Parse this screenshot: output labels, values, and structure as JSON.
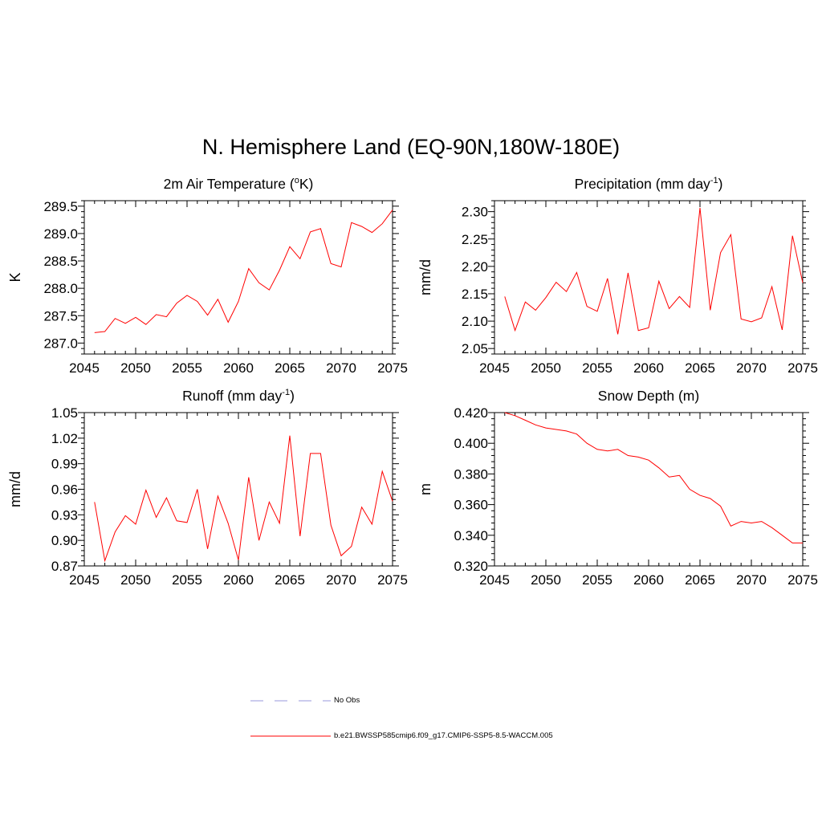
{
  "title": "N. Hemisphere Land (EQ-90N,180W-180E)",
  "line_color": "#ff0000",
  "legend": [
    {
      "label": "No Obs",
      "style": "dashed",
      "color": "#9999dd"
    },
    {
      "label": "b.e21.BWSSP585cmip6.f09_g17.CMIP6-SSP5-8.5-WACCM.005",
      "style": "solid",
      "color": "#ff0000"
    }
  ],
  "chart_data": [
    {
      "type": "line",
      "title_main": "2m Air Temperature (",
      "title_sup": "o",
      "title_tail": "K)",
      "ylabel": "K",
      "xlim": [
        2045,
        2075
      ],
      "ylim": [
        286.8,
        289.6
      ],
      "yticks": [
        287.0,
        287.5,
        288.0,
        288.5,
        289.0,
        289.5
      ],
      "ytick_labels": [
        "287.0",
        "287.5",
        "288.0",
        "288.5",
        "289.0",
        "289.5"
      ],
      "xticks": [
        2045,
        2050,
        2055,
        2060,
        2065,
        2070,
        2075
      ],
      "xtick_labels": [
        "2045",
        "2050",
        "2055",
        "2060",
        "2065",
        "2070",
        "2075"
      ],
      "x": [
        2046,
        2047,
        2048,
        2049,
        2050,
        2051,
        2052,
        2053,
        2054,
        2055,
        2056,
        2057,
        2058,
        2059,
        2060,
        2061,
        2062,
        2063,
        2064,
        2065,
        2066,
        2067,
        2068,
        2069,
        2070,
        2071,
        2072,
        2073,
        2074,
        2075
      ],
      "values": [
        287.19,
        287.21,
        287.45,
        287.36,
        287.47,
        287.34,
        287.52,
        287.48,
        287.73,
        287.87,
        287.76,
        287.51,
        287.8,
        287.38,
        287.76,
        288.36,
        288.1,
        287.97,
        288.33,
        288.76,
        288.54,
        289.03,
        289.09,
        288.45,
        288.39,
        289.2,
        289.13,
        289.02,
        289.18,
        289.43
      ]
    },
    {
      "type": "line",
      "title_main": "Precipitation (mm day",
      "title_sup": "-1",
      "title_tail": ")",
      "ylabel": "mm/d",
      "xlim": [
        2045,
        2075
      ],
      "ylim": [
        2.04,
        2.32
      ],
      "yticks": [
        2.05,
        2.1,
        2.15,
        2.2,
        2.25,
        2.3
      ],
      "ytick_labels": [
        "2.05",
        "2.10",
        "2.15",
        "2.20",
        "2.25",
        "2.30"
      ],
      "xticks": [
        2045,
        2050,
        2055,
        2060,
        2065,
        2070,
        2075
      ],
      "xtick_labels": [
        "2045",
        "2050",
        "2055",
        "2060",
        "2065",
        "2070",
        "2075"
      ],
      "x": [
        2046,
        2047,
        2048,
        2049,
        2050,
        2051,
        2052,
        2053,
        2054,
        2055,
        2056,
        2057,
        2058,
        2059,
        2060,
        2061,
        2062,
        2063,
        2064,
        2065,
        2066,
        2067,
        2068,
        2069,
        2070,
        2071,
        2072,
        2073,
        2074,
        2075
      ],
      "values": [
        2.145,
        2.083,
        2.135,
        2.12,
        2.143,
        2.171,
        2.154,
        2.189,
        2.127,
        2.118,
        2.178,
        2.076,
        2.188,
        2.083,
        2.088,
        2.173,
        2.123,
        2.145,
        2.125,
        2.307,
        2.12,
        2.225,
        2.258,
        2.104,
        2.099,
        2.106,
        2.163,
        2.084,
        2.256,
        2.17
      ]
    },
    {
      "type": "line",
      "title_main": "Runoff (mm day",
      "title_sup": "-1",
      "title_tail": ")",
      "ylabel": "mm/d",
      "xlim": [
        2045,
        2075
      ],
      "ylim": [
        0.87,
        1.05
      ],
      "yticks": [
        0.87,
        0.9,
        0.93,
        0.96,
        0.99,
        1.02,
        1.05
      ],
      "ytick_labels": [
        "0.87",
        "0.90",
        "0.93",
        "0.96",
        "0.99",
        "1.02",
        "1.05"
      ],
      "xticks": [
        2045,
        2050,
        2055,
        2060,
        2065,
        2070,
        2075
      ],
      "xtick_labels": [
        "2045",
        "2050",
        "2055",
        "2060",
        "2065",
        "2070",
        "2075"
      ],
      "x": [
        2046,
        2047,
        2048,
        2049,
        2050,
        2051,
        2052,
        2053,
        2054,
        2055,
        2056,
        2057,
        2058,
        2059,
        2060,
        2061,
        2062,
        2063,
        2064,
        2065,
        2066,
        2067,
        2068,
        2069,
        2070,
        2071,
        2072,
        2073,
        2074,
        2075
      ],
      "values": [
        0.945,
        0.876,
        0.91,
        0.929,
        0.919,
        0.959,
        0.927,
        0.95,
        0.923,
        0.921,
        0.96,
        0.89,
        0.952,
        0.92,
        0.877,
        0.974,
        0.9,
        0.945,
        0.92,
        1.023,
        0.905,
        1.002,
        1.002,
        0.918,
        0.882,
        0.893,
        0.939,
        0.919,
        0.981,
        0.946
      ]
    },
    {
      "type": "line",
      "title_main": "Snow Depth (m)",
      "title_sup": "",
      "title_tail": "",
      "ylabel": "m",
      "xlim": [
        2045,
        2075
      ],
      "ylim": [
        0.32,
        0.42
      ],
      "yticks": [
        0.32,
        0.34,
        0.36,
        0.38,
        0.4,
        0.42
      ],
      "ytick_labels": [
        "0.320",
        "0.340",
        "0.360",
        "0.380",
        "0.400",
        "0.420"
      ],
      "xticks": [
        2045,
        2050,
        2055,
        2060,
        2065,
        2070,
        2075
      ],
      "xtick_labels": [
        "2045",
        "2050",
        "2055",
        "2060",
        "2065",
        "2070",
        "2075"
      ],
      "x": [
        2046,
        2047,
        2048,
        2049,
        2050,
        2051,
        2052,
        2053,
        2054,
        2055,
        2056,
        2057,
        2058,
        2059,
        2060,
        2061,
        2062,
        2063,
        2064,
        2065,
        2066,
        2067,
        2068,
        2069,
        2070,
        2071,
        2072,
        2073,
        2074,
        2075
      ],
      "values": [
        0.42,
        0.418,
        0.415,
        0.412,
        0.41,
        0.409,
        0.408,
        0.406,
        0.4,
        0.396,
        0.395,
        0.396,
        0.392,
        0.391,
        0.389,
        0.384,
        0.378,
        0.379,
        0.37,
        0.366,
        0.364,
        0.359,
        0.346,
        0.349,
        0.348,
        0.349,
        0.345,
        0.34,
        0.335,
        0.335
      ]
    }
  ]
}
